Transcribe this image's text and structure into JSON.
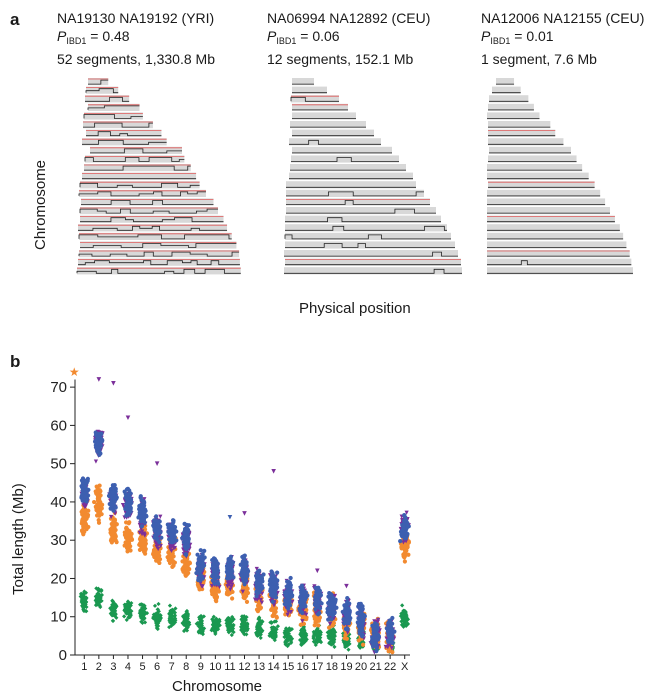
{
  "panel_a": {
    "label": "a",
    "ylabel": "Chromosome",
    "xlabel": "Physical position",
    "pairs": [
      {
        "pair": "NA19130 NA19192 (YRI)",
        "p_symbol": "P",
        "p_sub": "IBD1",
        "p_value": "= 0.48",
        "segments": "52 segments, 1,330.8 Mb"
      },
      {
        "pair": "NA06994 NA12892 (CEU)",
        "p_symbol": "P",
        "p_sub": "IBD1",
        "p_value": "= 0.06",
        "segments": "12 segments, 152.1 Mb"
      },
      {
        "pair": "NA12006 NA12155 (CEU)",
        "p_symbol": "P",
        "p_sub": "IBD1",
        "p_value": "= 0.01",
        "segments": "1 segment, 7.6 Mb"
      }
    ]
  },
  "panel_b": {
    "label": "b"
  },
  "colors": {
    "green": "#1a9850",
    "orange": "#f28a30",
    "blue": "#3d5fb0",
    "purple": "#7b2f9a",
    "red_line": "#e05a5a",
    "track": "#d8d8d8"
  },
  "chart_data": {
    "type": "scatter",
    "xlabel": "Chromosome",
    "ylabel": "Total length (Mb)",
    "ylim": [
      0,
      75
    ],
    "yticks": [
      0,
      10,
      20,
      30,
      40,
      50,
      60,
      70
    ],
    "categories": [
      "1",
      "2",
      "3",
      "4",
      "5",
      "6",
      "7",
      "8",
      "9",
      "10",
      "11",
      "12",
      "13",
      "14",
      "15",
      "16",
      "17",
      "18",
      "19",
      "20",
      "21",
      "22",
      "X"
    ],
    "series": [
      {
        "color": "green",
        "centers": [
          14,
          15,
          12,
          12,
          11,
          10,
          10,
          9,
          8,
          8,
          8,
          8,
          7,
          6,
          5,
          5,
          5,
          5,
          4,
          4,
          3,
          3,
          10
        ],
        "spread": 2.2
      },
      {
        "color": "orange",
        "centers": [
          36,
          40,
          33,
          31,
          30,
          28,
          27,
          24,
          20,
          18,
          19,
          18,
          16,
          14,
          13,
          12,
          12,
          11,
          8,
          7,
          5,
          5,
          29
        ],
        "spread": 3.5
      },
      {
        "color": "blue",
        "centers": [
          43,
          55,
          41,
          40,
          37,
          33,
          32,
          30,
          23,
          22,
          22,
          22,
          19,
          18,
          16,
          15,
          15,
          13,
          11,
          9,
          5,
          6,
          33
        ],
        "spread": 3.0
      },
      {
        "color": "purple",
        "centers": [
          42,
          55,
          40,
          39,
          36,
          32,
          31,
          29,
          22,
          21,
          21,
          21,
          18,
          17,
          15,
          14,
          14,
          12,
          10,
          8,
          5,
          5,
          33
        ],
        "spread": 3.5
      }
    ],
    "outliers": [
      {
        "x": "1",
        "y": 74,
        "color": "orange",
        "marker": "star"
      },
      {
        "x": "2",
        "y": 72,
        "color": "purple"
      },
      {
        "x": "3",
        "y": 71,
        "color": "purple"
      },
      {
        "x": "4",
        "y": 62,
        "color": "purple"
      },
      {
        "x": "6",
        "y": 50,
        "color": "purple"
      },
      {
        "x": "14",
        "y": 48,
        "color": "purple"
      },
      {
        "x": "12",
        "y": 37,
        "color": "purple"
      },
      {
        "x": "11",
        "y": 36,
        "color": "blue"
      },
      {
        "x": "17",
        "y": 22,
        "color": "purple"
      },
      {
        "x": "19",
        "y": 18,
        "color": "purple"
      }
    ]
  }
}
